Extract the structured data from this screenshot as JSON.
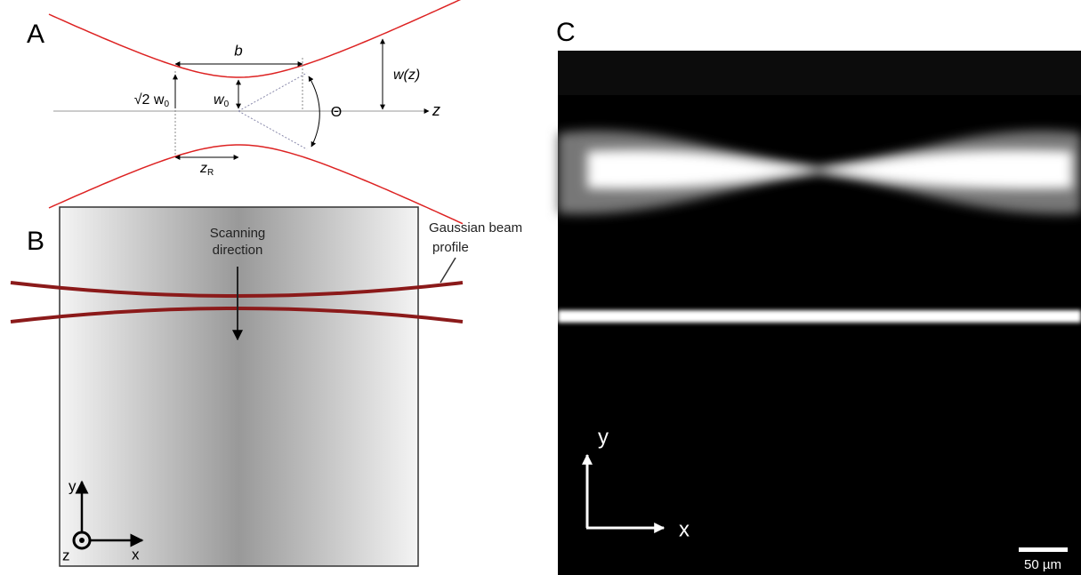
{
  "panel_a": {
    "label": "A",
    "b": "b",
    "sqrt2_w0": {
      "prefix": "√2 w",
      "sub": "0"
    },
    "w0": {
      "base": "w",
      "sub": "0"
    },
    "z_r": {
      "base": "z",
      "sub": "R"
    },
    "theta": "Θ",
    "w_z": "w(z)",
    "axis": "z"
  },
  "panel_b": {
    "label": "B",
    "scanning": [
      "Scanning",
      "direction"
    ],
    "beam_profile": [
      "Gaussian beam",
      "profile"
    ],
    "axes": {
      "y": "y",
      "x": "x",
      "z": "z"
    }
  },
  "panel_c": {
    "label": "C",
    "axes": {
      "y": "y",
      "x": "x"
    },
    "scale_bar": "50 µm"
  }
}
